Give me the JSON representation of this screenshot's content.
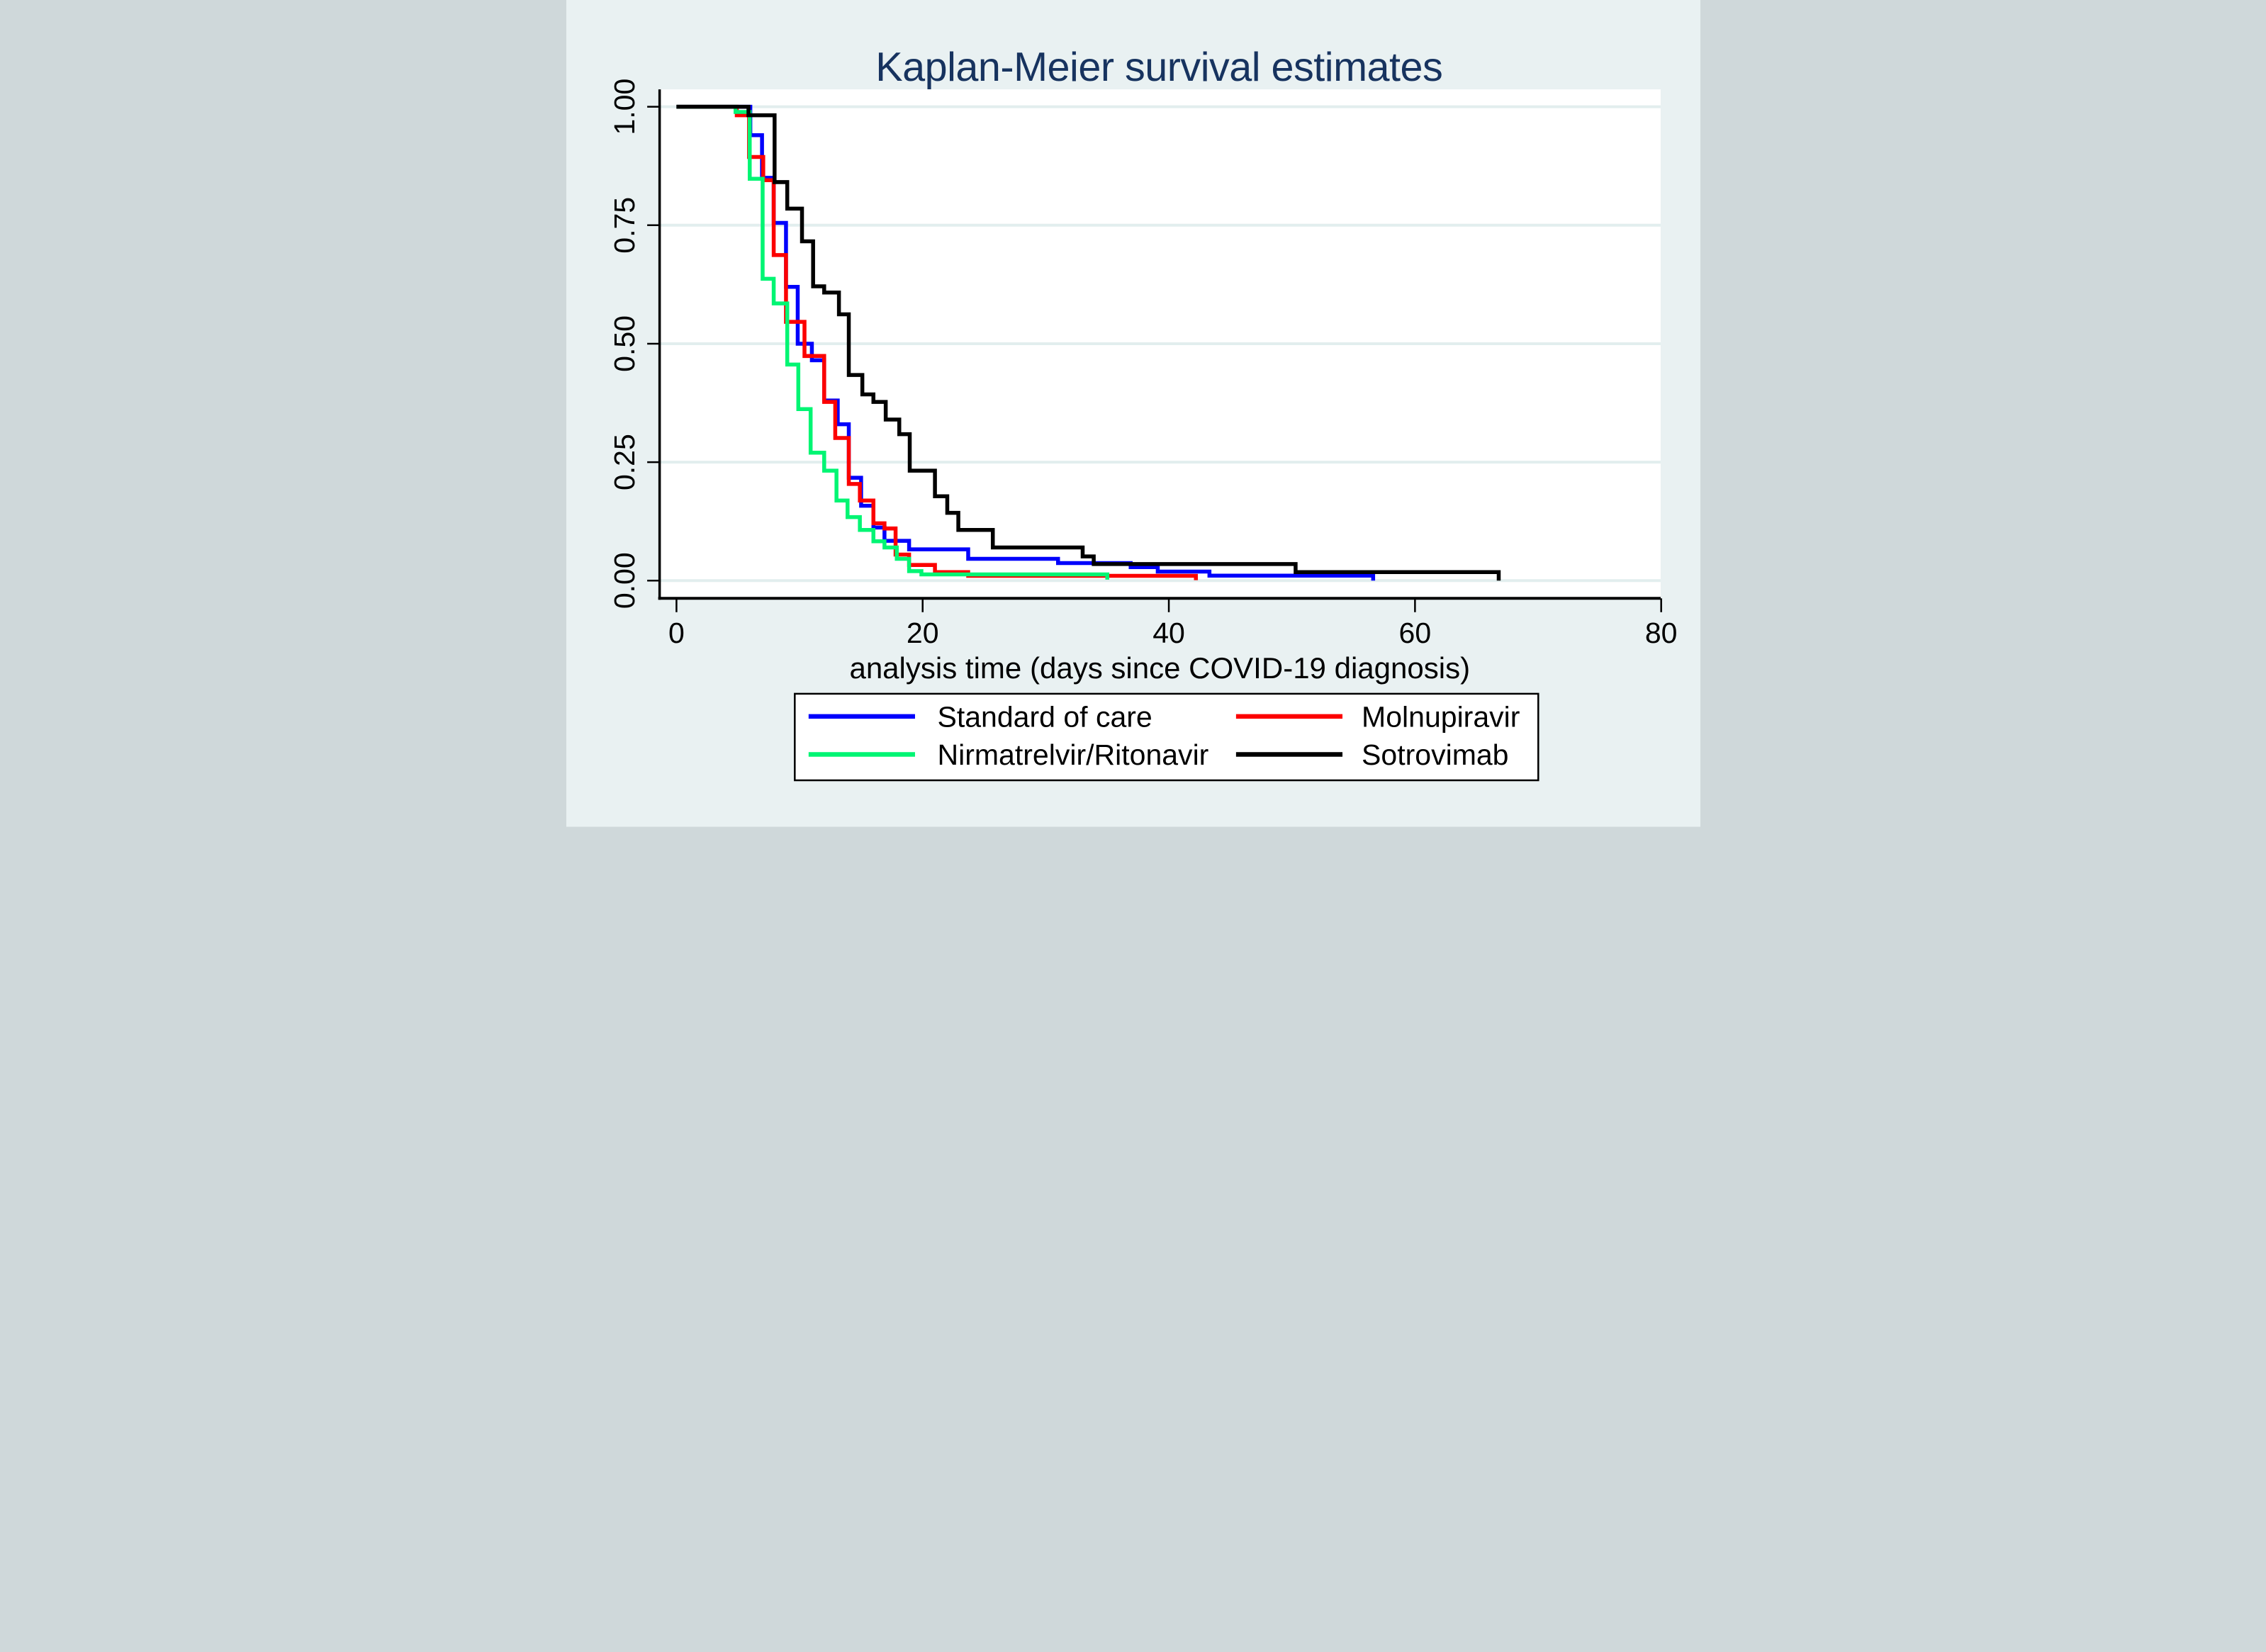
{
  "title": "Kaplan-Meier survival estimates",
  "colors": {
    "background": "#E9F1F2",
    "plot_background": "#FFFFFF",
    "gridline": "#E2EEEE",
    "axis": "#000000",
    "title_color": "#17335F",
    "series_blue": "#0000FC",
    "series_red": "#FC0000",
    "series_green": "#00F573",
    "series_black": "#000000"
  },
  "chart_data": {
    "type": "line",
    "subtype": "kaplan-meier-step",
    "title": "Kaplan-Meier survival estimates",
    "xlabel": "analysis time (days since COVID-19 diagnosis)",
    "ylabel": "",
    "xlim": [
      0,
      80
    ],
    "ylim": [
      0,
      1
    ],
    "grid": "horizontal",
    "legend_position": "bottom",
    "x_ticks": [
      {
        "v": 0,
        "label": "0"
      },
      {
        "v": 20,
        "label": "20"
      },
      {
        "v": 40,
        "label": "40"
      },
      {
        "v": 60,
        "label": "60"
      },
      {
        "v": 80,
        "label": "80"
      }
    ],
    "y_ticks": [
      {
        "v": 1.0,
        "label": "1.00"
      },
      {
        "v": 0.75,
        "label": "0.75"
      },
      {
        "v": 0.5,
        "label": "0.50"
      },
      {
        "v": 0.25,
        "label": "0.25"
      },
      {
        "v": 0.0,
        "label": "0.00"
      }
    ],
    "series": [
      {
        "name": "Standard of care",
        "color_key": "series_blue",
        "points": [
          [
            0,
            1
          ],
          [
            6,
            0.94
          ],
          [
            6.95,
            0.85
          ],
          [
            7.9,
            0.755
          ],
          [
            8.9,
            0.62
          ],
          [
            9.85,
            0.5
          ],
          [
            11,
            0.465
          ],
          [
            12,
            0.38
          ],
          [
            13.1,
            0.33
          ],
          [
            14,
            0.217
          ],
          [
            15,
            0.158
          ],
          [
            16,
            0.112
          ],
          [
            16.9,
            0.084
          ],
          [
            18.9,
            0.066
          ],
          [
            23.7,
            0.046
          ],
          [
            31,
            0.037
          ],
          [
            36.9,
            0.0285
          ],
          [
            39.1,
            0.019
          ],
          [
            43.3,
            0.0105
          ],
          [
            56.6,
            0
          ]
        ]
      },
      {
        "name": "Molnupiravir",
        "color_key": "series_red",
        "points": [
          [
            0,
            1
          ],
          [
            4.9,
            0.982
          ],
          [
            5.9,
            0.894
          ],
          [
            7.05,
            0.845
          ],
          [
            7.9,
            0.687
          ],
          [
            8.9,
            0.546
          ],
          [
            10.4,
            0.474
          ],
          [
            12,
            0.377
          ],
          [
            12.9,
            0.301
          ],
          [
            14,
            0.204
          ],
          [
            14.9,
            0.169
          ],
          [
            16,
            0.121
          ],
          [
            16.9,
            0.11
          ],
          [
            17.8,
            0.055
          ],
          [
            18.9,
            0.033
          ],
          [
            21,
            0.018
          ],
          [
            23.7,
            0.01
          ],
          [
            42.2,
            0.001
          ]
        ]
      },
      {
        "name": "Nirmatrelvir/Ritonavir",
        "color_key": "series_green",
        "points": [
          [
            0,
            1
          ],
          [
            4.8,
            0.989
          ],
          [
            5.95,
            0.848
          ],
          [
            7,
            0.637
          ],
          [
            7.9,
            0.585
          ],
          [
            9,
            0.456
          ],
          [
            9.9,
            0.362
          ],
          [
            10.9,
            0.27
          ],
          [
            12,
            0.232
          ],
          [
            13,
            0.169
          ],
          [
            13.9,
            0.134
          ],
          [
            14.9,
            0.107
          ],
          [
            16,
            0.083
          ],
          [
            16.9,
            0.07
          ],
          [
            17.9,
            0.046
          ],
          [
            18.9,
            0.02
          ],
          [
            19.9,
            0.013
          ],
          [
            35,
            0.002
          ]
        ]
      },
      {
        "name": "Sotrovimab",
        "color_key": "series_black",
        "points": [
          [
            0,
            1
          ],
          [
            5.85,
            0.982
          ],
          [
            7.97,
            0.841
          ],
          [
            9,
            0.785
          ],
          [
            10.2,
            0.716
          ],
          [
            11.1,
            0.621
          ],
          [
            12,
            0.608
          ],
          [
            13.2,
            0.562
          ],
          [
            14,
            0.434
          ],
          [
            15.1,
            0.393
          ],
          [
            16,
            0.377
          ],
          [
            17,
            0.34
          ],
          [
            18.1,
            0.309
          ],
          [
            18.95,
            0.232
          ],
          [
            21,
            0.178
          ],
          [
            22,
            0.143
          ],
          [
            22.9,
            0.107
          ],
          [
            25.7,
            0.07
          ],
          [
            33,
            0.051
          ],
          [
            33.9,
            0.035
          ],
          [
            50.3,
            0.018
          ],
          [
            66.8,
            0
          ]
        ]
      }
    ]
  },
  "legend": {
    "entries": [
      {
        "label": "Standard of care",
        "color_key": "series_blue"
      },
      {
        "label": "Molnupiravir",
        "color_key": "series_red"
      },
      {
        "label": "Nirmatrelvir/Ritonavir",
        "color_key": "series_green"
      },
      {
        "label": "Sotrovimab",
        "color_key": "series_black"
      }
    ]
  }
}
